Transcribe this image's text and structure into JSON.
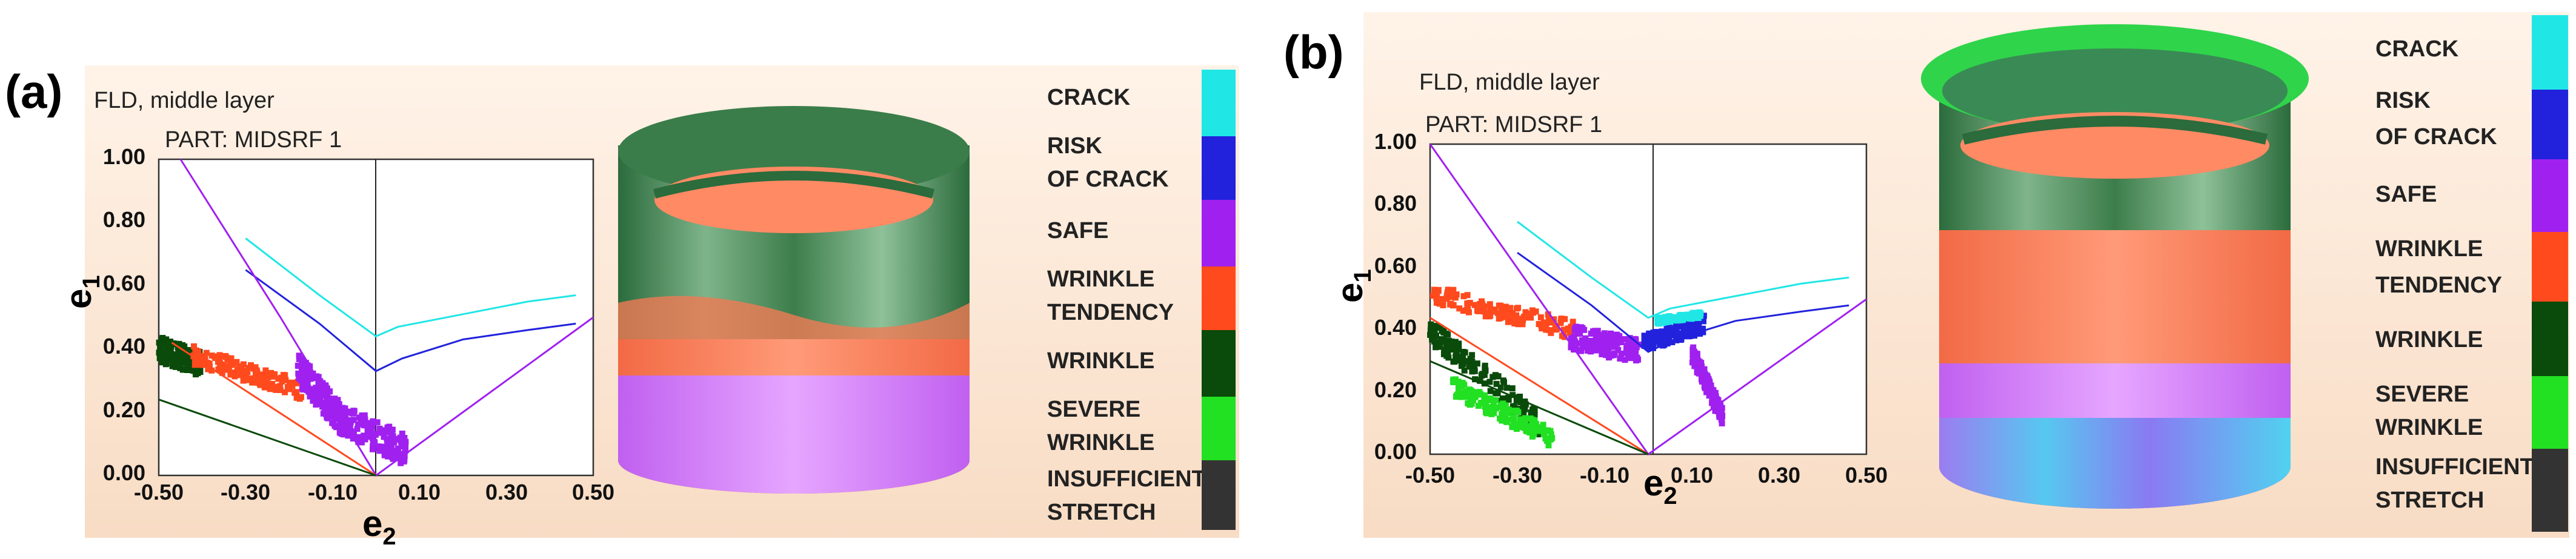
{
  "panels": [
    {
      "label": "(a)",
      "header": "FLD, middle layer",
      "part": "PART: MIDSRF 1",
      "xlabel": "e",
      "xlabel_sub": "2",
      "ylabel": "e",
      "ylabel_sub": "1",
      "x_ticks": [
        "-0.50",
        "-0.30",
        "-0.10",
        "0.10",
        "0.30",
        "0.50"
      ],
      "y_ticks": [
        "0.00",
        "0.20",
        "0.40",
        "0.60",
        "0.80",
        "1.00"
      ],
      "legend": [
        "CRACK",
        "RISK",
        "OF CRACK",
        "SAFE",
        "WRINKLE",
        "TENDENCY",
        "WRINKLE",
        "SEVERE",
        "WRINKLE",
        "INSUFFICIENT",
        "STRETCH"
      ]
    },
    {
      "label": "(b)",
      "header": "FLD, middle layer",
      "part": "PART: MIDSRF 1",
      "xlabel": "e",
      "xlabel_sub": "2",
      "ylabel": "e",
      "ylabel_sub": "1",
      "x_ticks": [
        "-0.50",
        "-0.30",
        "-0.10",
        "0.10",
        "0.30",
        "0.50"
      ],
      "y_ticks": [
        "0.00",
        "0.20",
        "0.40",
        "0.60",
        "0.80",
        "1.00"
      ],
      "legend": [
        "CRACK",
        "RISK",
        "OF CRACK",
        "SAFE",
        "WRINKLE",
        "TENDENCY",
        "WRINKLE",
        "SEVERE",
        "WRINKLE",
        "INSUFFICIENT",
        "STRETCH"
      ]
    }
  ],
  "colors": {
    "crack": "#21e6e6",
    "risk_of_crack": "#2222dd",
    "safe": "#a020f0",
    "wrinkle_tendency": "#ff4a1e",
    "wrinkle": "#0a4a0a",
    "severe_wrinkle": "#22e022",
    "insufficient_stretch": "#333333",
    "panel_bg": "#fbe3cf"
  },
  "chart_data": [
    {
      "type": "scatter",
      "panel": "(a)",
      "xlim": [
        -0.5,
        0.5
      ],
      "ylim": [
        0.0,
        1.0
      ],
      "xlabel": "e2",
      "ylabel": "e1",
      "grid": false,
      "lines": [
        {
          "name": "crack",
          "color": "#21e6e6",
          "x": [
            -0.3,
            -0.13,
            0.0,
            0.05,
            0.2,
            0.35,
            0.46
          ],
          "y": [
            0.75,
            0.57,
            0.44,
            0.47,
            0.51,
            0.55,
            0.57
          ]
        },
        {
          "name": "risk of crack",
          "color": "#2222dd",
          "x": [
            -0.3,
            -0.13,
            0.0,
            0.06,
            0.2,
            0.35,
            0.46
          ],
          "y": [
            0.65,
            0.48,
            0.33,
            0.37,
            0.43,
            0.46,
            0.48
          ]
        },
        {
          "name": "safe",
          "color": "#a020f0",
          "x": [
            -0.45,
            -0.22,
            0.0,
            0.5
          ],
          "y": [
            1.0,
            0.5,
            0.0,
            0.5
          ]
        },
        {
          "name": "wrinkle tendency",
          "color": "#ff4a1e",
          "x": [
            -0.47,
            0.0
          ],
          "y": [
            0.42,
            0.0
          ]
        },
        {
          "name": "wrinkle",
          "color": "#0a4a0a",
          "x": [
            -0.5,
            0.0
          ],
          "y": [
            0.24,
            0.0
          ]
        }
      ],
      "clusters": [
        {
          "name": "wrinkle",
          "color": "#0a4a0a",
          "x0": -0.5,
          "x1": -0.4,
          "yc_start": 0.4,
          "yc_end": 0.35,
          "spread": 0.04
        },
        {
          "name": "wrinkle tendency",
          "color": "#ff4a1e",
          "x0": -0.42,
          "x1": -0.17,
          "yc_start": 0.38,
          "yc_end": 0.27,
          "spread": 0.03
        },
        {
          "name": "safe",
          "color": "#a020f0",
          "x0": -0.18,
          "x1": -0.08,
          "yc_start": 0.34,
          "yc_end": 0.18,
          "spread": 0.05
        },
        {
          "name": "safe",
          "color": "#a020f0",
          "x0": -0.08,
          "x1": 0.07,
          "yc_start": 0.18,
          "yc_end": 0.08,
          "spread": 0.05
        }
      ]
    },
    {
      "type": "scatter",
      "panel": "(b)",
      "xlim": [
        -0.5,
        0.5
      ],
      "ylim": [
        0.0,
        1.0
      ],
      "xlabel": "e2",
      "ylabel": "e1",
      "grid": false,
      "lines": [
        {
          "name": "crack",
          "color": "#21e6e6",
          "x": [
            -0.3,
            -0.13,
            0.0,
            0.05,
            0.2,
            0.35,
            0.46
          ],
          "y": [
            0.75,
            0.57,
            0.44,
            0.47,
            0.51,
            0.55,
            0.57
          ]
        },
        {
          "name": "risk of crack",
          "color": "#2222dd",
          "x": [
            -0.3,
            -0.13,
            0.0,
            0.06,
            0.2,
            0.35,
            0.46
          ],
          "y": [
            0.65,
            0.48,
            0.33,
            0.37,
            0.43,
            0.46,
            0.48
          ]
        },
        {
          "name": "safe",
          "color": "#a020f0",
          "x": [
            -0.5,
            -0.25,
            0.0,
            0.5
          ],
          "y": [
            1.0,
            0.5,
            0.0,
            0.5
          ]
        },
        {
          "name": "wrinkle tendency",
          "color": "#ff4a1e",
          "x": [
            -0.5,
            0.0
          ],
          "y": [
            0.44,
            0.0
          ]
        },
        {
          "name": "wrinkle",
          "color": "#0a4a0a",
          "x": [
            -0.5,
            0.0
          ],
          "y": [
            0.3,
            0.0
          ]
        }
      ],
      "clusters": [
        {
          "name": "wrinkle tendency",
          "color": "#ff4a1e",
          "x0": -0.5,
          "x1": -0.17,
          "yc_start": 0.52,
          "yc_end": 0.4,
          "spread": 0.03
        },
        {
          "name": "wrinkle",
          "color": "#0a4a0a",
          "x0": -0.5,
          "x1": -0.25,
          "yc_start": 0.4,
          "yc_end": 0.1,
          "spread": 0.04
        },
        {
          "name": "severe wrinkle",
          "color": "#22e022",
          "x0": -0.45,
          "x1": -0.22,
          "yc_start": 0.22,
          "yc_end": 0.05,
          "spread": 0.03
        },
        {
          "name": "safe",
          "color": "#a020f0",
          "x0": -0.18,
          "x1": -0.02,
          "yc_start": 0.38,
          "yc_end": 0.33,
          "spread": 0.04
        },
        {
          "name": "risk of crack",
          "color": "#2222dd",
          "x0": -0.01,
          "x1": 0.13,
          "yc_start": 0.36,
          "yc_end": 0.42,
          "spread": 0.03
        },
        {
          "name": "crack",
          "color": "#21e6e6",
          "x0": 0.02,
          "x1": 0.12,
          "yc_start": 0.43,
          "yc_end": 0.45,
          "spread": 0.01
        },
        {
          "name": "safe",
          "color": "#a020f0",
          "x0": 0.1,
          "x1": 0.17,
          "yc_start": 0.33,
          "yc_end": 0.12,
          "spread": 0.03
        }
      ]
    }
  ]
}
